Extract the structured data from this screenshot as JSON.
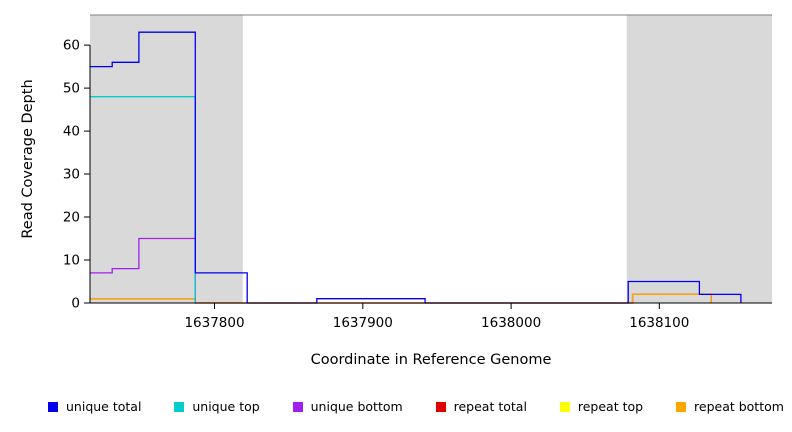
{
  "chart_data": {
    "type": "line",
    "subtype": "step-coverage",
    "title": "",
    "xlabel": "Coordinate in Reference Genome",
    "ylabel": "Read Coverage Depth",
    "xlim": [
      1637716,
      1638176
    ],
    "ylim": [
      0,
      67
    ],
    "xticks": [
      1637800,
      1637900,
      1638000,
      1638100
    ],
    "yticks": [
      0,
      10,
      20,
      30,
      40,
      50,
      60
    ],
    "grid": false,
    "legend_position": "bottom",
    "shaded_regions": [
      [
        1637716,
        1637819
      ],
      [
        1638078,
        1638176
      ]
    ],
    "colors": {
      "shade": "#D9D9D9",
      "border": "#808080",
      "axis": "#000000"
    },
    "series": [
      {
        "name": "unique total",
        "color": "#0000EE",
        "zorder": 6,
        "points": [
          [
            1637716,
            55
          ],
          [
            1637731,
            56
          ],
          [
            1637749,
            63
          ],
          [
            1637787,
            7
          ],
          [
            1637822,
            0
          ],
          [
            1637869,
            1
          ],
          [
            1637942,
            0
          ],
          [
            1638079,
            5
          ],
          [
            1638127,
            2
          ],
          [
            1638155,
            0
          ]
        ]
      },
      {
        "name": "unique top",
        "color": "#00CDCD",
        "zorder": 5,
        "points": [
          [
            1637716,
            48
          ],
          [
            1637787,
            0
          ]
        ]
      },
      {
        "name": "unique bottom",
        "color": "#A020F0",
        "zorder": 4,
        "points": [
          [
            1637716,
            7
          ],
          [
            1637731,
            8
          ],
          [
            1637749,
            15
          ],
          [
            1637787,
            0
          ]
        ]
      },
      {
        "name": "repeat total",
        "color": "#DF0000",
        "zorder": 1,
        "points": [
          [
            1637716,
            1
          ],
          [
            1637787,
            0
          ],
          [
            1638082,
            2
          ],
          [
            1638135,
            0
          ]
        ]
      },
      {
        "name": "repeat top",
        "color": "#FFFF00",
        "zorder": 2,
        "points": []
      },
      {
        "name": "repeat bottom",
        "color": "#FFA500",
        "zorder": 3,
        "points": [
          [
            1637716,
            1
          ],
          [
            1637787,
            0
          ],
          [
            1638082,
            2
          ],
          [
            1638135,
            0
          ]
        ]
      }
    ]
  }
}
